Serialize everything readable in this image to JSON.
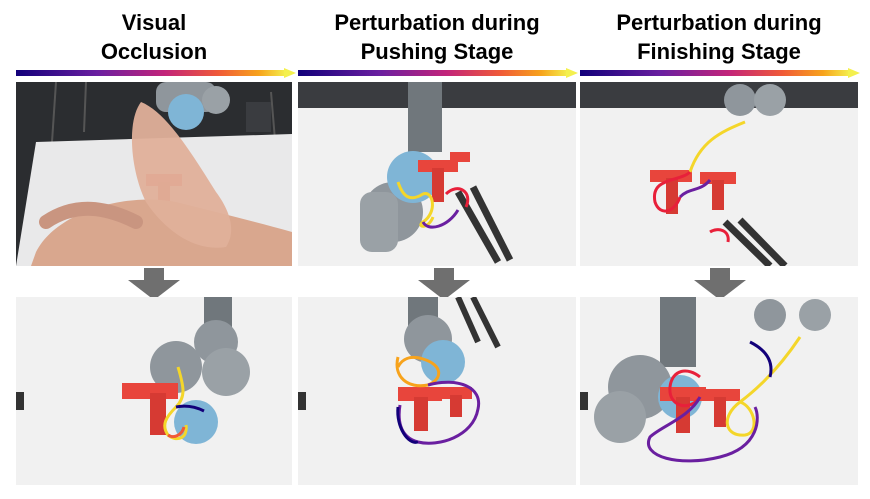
{
  "columns": [
    {
      "title_line1": "Visual",
      "title_line2": "Occlusion"
    },
    {
      "title_line1": "Perturbation during",
      "title_line2": "Pushing Stage"
    },
    {
      "title_line1": "Perturbation during",
      "title_line2": "Finishing Stage"
    }
  ],
  "colors": {
    "trajectory_gradient": [
      "#12007a",
      "#6a1fa0",
      "#c2247a",
      "#f05a38",
      "#f7a31c",
      "#f4f04e"
    ],
    "t_block": "#e8453c",
    "arrow": "#6f6f6f",
    "table": "#f1f1f1",
    "robot_arm": "#8f969c"
  }
}
